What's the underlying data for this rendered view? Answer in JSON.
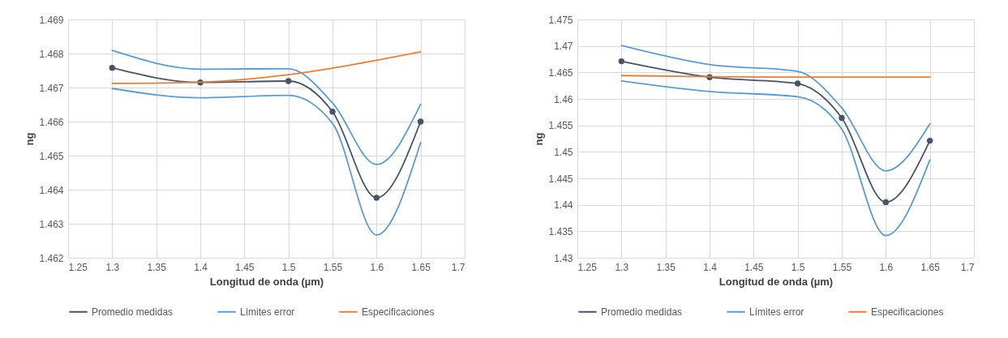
{
  "chart_data": [
    {
      "type": "line",
      "xlabel": "Longitud de onda (µm)",
      "ylabel": "ng",
      "x": [
        1.3,
        1.4,
        1.5,
        1.55,
        1.6,
        1.65
      ],
      "xlim": [
        1.25,
        1.7
      ],
      "xticks": [
        1.25,
        1.3,
        1.35,
        1.4,
        1.45,
        1.5,
        1.55,
        1.6,
        1.65,
        1.7
      ],
      "ylim": [
        1.462,
        1.469
      ],
      "yticks": [
        1.462,
        1.463,
        1.464,
        1.465,
        1.466,
        1.467,
        1.468,
        1.469
      ],
      "grid": true,
      "legend": "bottom",
      "series": [
        {
          "name": "Promedio medidas",
          "color": "#44546a",
          "marker": "circle",
          "values": [
            1.46758,
            1.46715,
            1.46719,
            1.46629,
            1.46376,
            1.466
          ]
        },
        {
          "name": "Límites error",
          "color": "#5b9bd5",
          "values": [
            1.46809,
            1.46754,
            1.46755,
            1.46655,
            1.46474,
            1.46651
          ]
        },
        {
          "color": "#5b9bd5",
          "values": [
            1.46697,
            1.4667,
            1.46677,
            1.46595,
            1.46267,
            1.46538
          ]
        },
        {
          "name": "Especificaciones",
          "color": "#ed7d31",
          "values": [
            1.46712,
            1.46716,
            1.46738,
            1.46757,
            1.4678,
            1.46805
          ]
        }
      ]
    },
    {
      "type": "line",
      "xlabel": "Longitud de onda (µm)",
      "ylabel": "ng",
      "x": [
        1.3,
        1.4,
        1.5,
        1.55,
        1.6,
        1.65
      ],
      "xlim": [
        1.25,
        1.7
      ],
      "xticks": [
        1.25,
        1.3,
        1.35,
        1.4,
        1.45,
        1.5,
        1.55,
        1.6,
        1.65,
        1.7
      ],
      "ylim": [
        1.43,
        1.475
      ],
      "yticks": [
        1.43,
        1.435,
        1.44,
        1.445,
        1.45,
        1.455,
        1.46,
        1.465,
        1.47,
        1.475
      ],
      "grid": true,
      "legend": "bottom",
      "series": [
        {
          "name": "Promedio medidas",
          "color": "#44546a",
          "marker": "circle",
          "values": [
            1.4671,
            1.4641,
            1.4629,
            1.4564,
            1.4405,
            1.4521
          ]
        },
        {
          "name": "Límites error",
          "color": "#5b9bd5",
          "values": [
            1.4701,
            1.4665,
            1.4652,
            1.4583,
            1.4464,
            1.4553
          ]
        },
        {
          "color": "#5b9bd5",
          "values": [
            1.4634,
            1.4614,
            1.4604,
            1.4543,
            1.4342,
            1.4485
          ]
        },
        {
          "name": "Especificaciones",
          "color": "#ed7d31",
          "values": [
            1.4644,
            1.4642,
            1.4641,
            1.4641,
            1.4641,
            1.4641
          ]
        }
      ]
    }
  ]
}
